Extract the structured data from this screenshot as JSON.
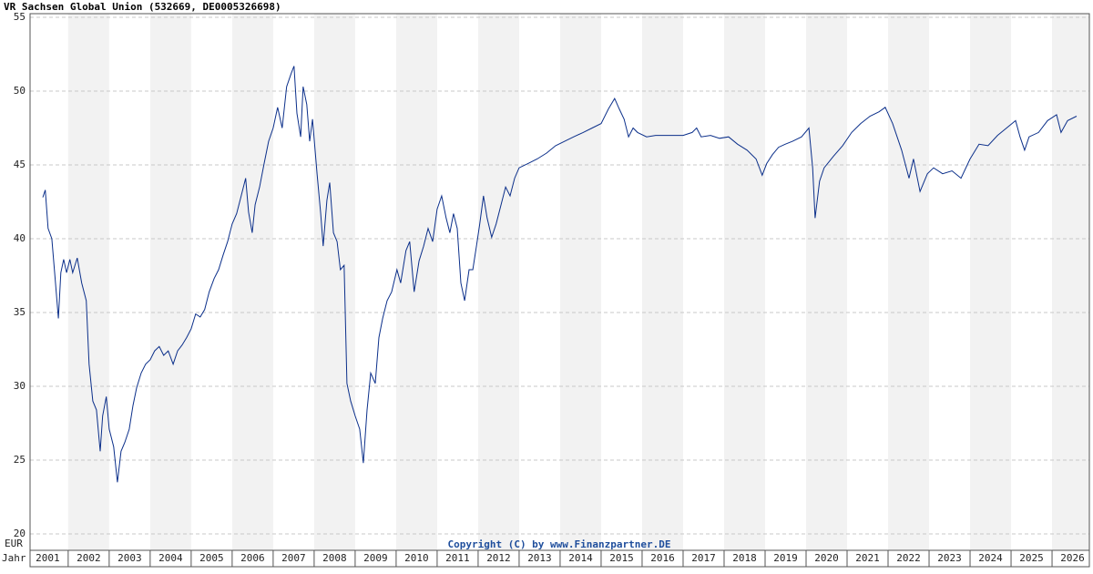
{
  "chart_data": {
    "type": "line",
    "title": "VR Sachsen Global Union (532669, DE0005326698)",
    "y_unit_label": "EUR",
    "x_axis_label": "Jahr",
    "copyright": "Copyright (C) by www.Finanzpartner.DE",
    "xlim": [
      2001.07,
      2026.91
    ],
    "ylim": [
      20,
      55
    ],
    "yticks": [
      20,
      25,
      30,
      35,
      40,
      45,
      50,
      55
    ],
    "xticks": [
      {
        "value": 2001.5,
        "label": "2001"
      },
      {
        "value": 2002.5,
        "label": "2002"
      },
      {
        "value": 2003.5,
        "label": "2003"
      },
      {
        "value": 2004.5,
        "label": "2004"
      },
      {
        "value": 2005.5,
        "label": "2005"
      },
      {
        "value": 2006.5,
        "label": "2006"
      },
      {
        "value": 2007.5,
        "label": "2007"
      },
      {
        "value": 2008.5,
        "label": "2008"
      },
      {
        "value": 2009.5,
        "label": "2009"
      },
      {
        "value": 2010.5,
        "label": "2010"
      },
      {
        "value": 2011.5,
        "label": "2011"
      },
      {
        "value": 2012.5,
        "label": "2012"
      },
      {
        "value": 2013.5,
        "label": "2013"
      },
      {
        "value": 2014.5,
        "label": "2014"
      },
      {
        "value": 2015.5,
        "label": "2015"
      },
      {
        "value": 2016.5,
        "label": "2016"
      },
      {
        "value": 2017.5,
        "label": "2017"
      },
      {
        "value": 2018.5,
        "label": "2018"
      },
      {
        "value": 2019.5,
        "label": "2019"
      },
      {
        "value": 2020.5,
        "label": "2020"
      },
      {
        "value": 2021.5,
        "label": "2021"
      },
      {
        "value": 2022.5,
        "label": "2022"
      },
      {
        "value": 2023.5,
        "label": "2023"
      },
      {
        "value": 2024.5,
        "label": "2024"
      },
      {
        "value": 2025.5,
        "label": "2025"
      },
      {
        "value": 2026.5,
        "label": "2026"
      }
    ],
    "grid": true,
    "band_color": "#f2f2f2",
    "x": [
      2001.38,
      2001.44,
      2001.51,
      2001.6,
      2001.67,
      2001.76,
      2001.82,
      2001.89,
      2001.96,
      2002.04,
      2002.11,
      2002.22,
      2002.33,
      2002.44,
      2002.51,
      2002.6,
      2002.69,
      2002.78,
      2002.84,
      2002.93,
      2003.0,
      2003.11,
      2003.2,
      2003.29,
      2003.38,
      2003.49,
      2003.58,
      2003.67,
      2003.78,
      2003.89,
      2004.0,
      2004.11,
      2004.22,
      2004.33,
      2004.44,
      2004.56,
      2004.67,
      2004.78,
      2004.89,
      2005.0,
      2005.11,
      2005.22,
      2005.33,
      2005.44,
      2005.56,
      2005.67,
      2005.78,
      2005.89,
      2006.0,
      2006.11,
      2006.22,
      2006.33,
      2006.4,
      2006.49,
      2006.56,
      2006.67,
      2006.78,
      2006.89,
      2007.0,
      2007.11,
      2007.22,
      2007.33,
      2007.44,
      2007.51,
      2007.58,
      2007.67,
      2007.73,
      2007.82,
      2007.89,
      2007.96,
      2008.07,
      2008.16,
      2008.22,
      2008.31,
      2008.38,
      2008.47,
      2008.56,
      2008.64,
      2008.73,
      2008.8,
      2008.89,
      2009.0,
      2009.11,
      2009.2,
      2009.29,
      2009.38,
      2009.49,
      2009.58,
      2009.67,
      2009.78,
      2009.89,
      2010.02,
      2010.11,
      2010.24,
      2010.33,
      2010.44,
      2010.56,
      2010.67,
      2010.78,
      2010.89,
      2011.0,
      2011.11,
      2011.22,
      2011.31,
      2011.4,
      2011.49,
      2011.58,
      2011.67,
      2011.78,
      2011.87,
      2011.96,
      2012.04,
      2012.13,
      2012.22,
      2012.33,
      2012.44,
      2012.56,
      2012.67,
      2012.78,
      2012.89,
      2013.0,
      2013.22,
      2013.44,
      2013.67,
      2013.89,
      2014.11,
      2014.33,
      2014.56,
      2014.78,
      2015.0,
      2015.18,
      2015.33,
      2015.44,
      2015.56,
      2015.67,
      2015.78,
      2015.89,
      2016.11,
      2016.33,
      2016.56,
      2016.78,
      2017.0,
      2017.22,
      2017.33,
      2017.44,
      2017.67,
      2017.89,
      2018.11,
      2018.33,
      2018.56,
      2018.78,
      2018.93,
      2019.04,
      2019.18,
      2019.33,
      2019.49,
      2019.67,
      2019.89,
      2020.07,
      2020.16,
      2020.22,
      2020.33,
      2020.44,
      2020.67,
      2020.89,
      2021.11,
      2021.33,
      2021.56,
      2021.78,
      2021.93,
      2022.11,
      2022.33,
      2022.51,
      2022.62,
      2022.78,
      2022.96,
      2023.11,
      2023.33,
      2023.56,
      2023.78,
      2024.0,
      2024.22,
      2024.44,
      2024.67,
      2024.89,
      2025.11,
      2025.22,
      2025.33,
      2025.44,
      2025.67,
      2025.89,
      2026.11,
      2026.22,
      2026.38,
      2026.6
    ],
    "series": [
      {
        "color": "#0b2f8a",
        "values": [
          42.8,
          43.3,
          40.7,
          40.0,
          37.7,
          34.6,
          37.7,
          38.6,
          37.7,
          38.6,
          37.7,
          38.7,
          37.0,
          35.8,
          31.5,
          29.0,
          28.4,
          25.6,
          28.0,
          29.3,
          27.1,
          25.9,
          23.5,
          25.6,
          26.2,
          27.1,
          28.7,
          29.9,
          30.9,
          31.5,
          31.8,
          32.4,
          32.7,
          32.1,
          32.4,
          31.5,
          32.4,
          32.8,
          33.3,
          33.9,
          34.9,
          34.7,
          35.2,
          36.4,
          37.3,
          37.9,
          38.9,
          39.8,
          41.0,
          41.7,
          42.9,
          44.1,
          41.8,
          40.4,
          42.3,
          43.5,
          45.1,
          46.6,
          47.5,
          48.9,
          47.5,
          50.3,
          51.2,
          51.7,
          48.5,
          46.9,
          50.3,
          49.1,
          46.6,
          48.1,
          44.4,
          41.7,
          39.5,
          42.6,
          43.8,
          40.4,
          39.8,
          37.9,
          38.2,
          30.2,
          29.0,
          28.0,
          27.1,
          24.8,
          28.4,
          30.9,
          30.2,
          33.3,
          34.6,
          35.8,
          36.4,
          37.9,
          37.0,
          39.2,
          39.8,
          36.4,
          38.5,
          39.5,
          40.7,
          39.8,
          42.0,
          42.9,
          41.4,
          40.4,
          41.7,
          40.7,
          37.0,
          35.8,
          37.9,
          37.9,
          39.5,
          41.0,
          42.9,
          41.4,
          40.1,
          41.0,
          42.3,
          43.5,
          42.9,
          44.1,
          44.8,
          45.1,
          45.4,
          45.8,
          46.3,
          46.6,
          46.9,
          47.2,
          47.5,
          47.8,
          48.8,
          49.5,
          48.8,
          48.1,
          46.9,
          47.5,
          47.2,
          46.9,
          47.0,
          47.0,
          47.0,
          47.0,
          47.2,
          47.5,
          46.9,
          47.0,
          46.8,
          46.9,
          46.4,
          46.0,
          45.4,
          44.3,
          45.1,
          45.7,
          46.2,
          46.4,
          46.6,
          46.9,
          47.5,
          44.8,
          41.4,
          43.9,
          44.8,
          45.6,
          46.3,
          47.2,
          47.8,
          48.3,
          48.6,
          48.9,
          47.8,
          46.0,
          44.1,
          45.4,
          43.2,
          44.4,
          44.8,
          44.4,
          44.6,
          44.1,
          45.4,
          46.4,
          46.3,
          47.0,
          47.5,
          48.0,
          46.9,
          46.0,
          46.9,
          47.2,
          48.0,
          48.4,
          47.2,
          48.0,
          48.3
        ]
      }
    ]
  }
}
